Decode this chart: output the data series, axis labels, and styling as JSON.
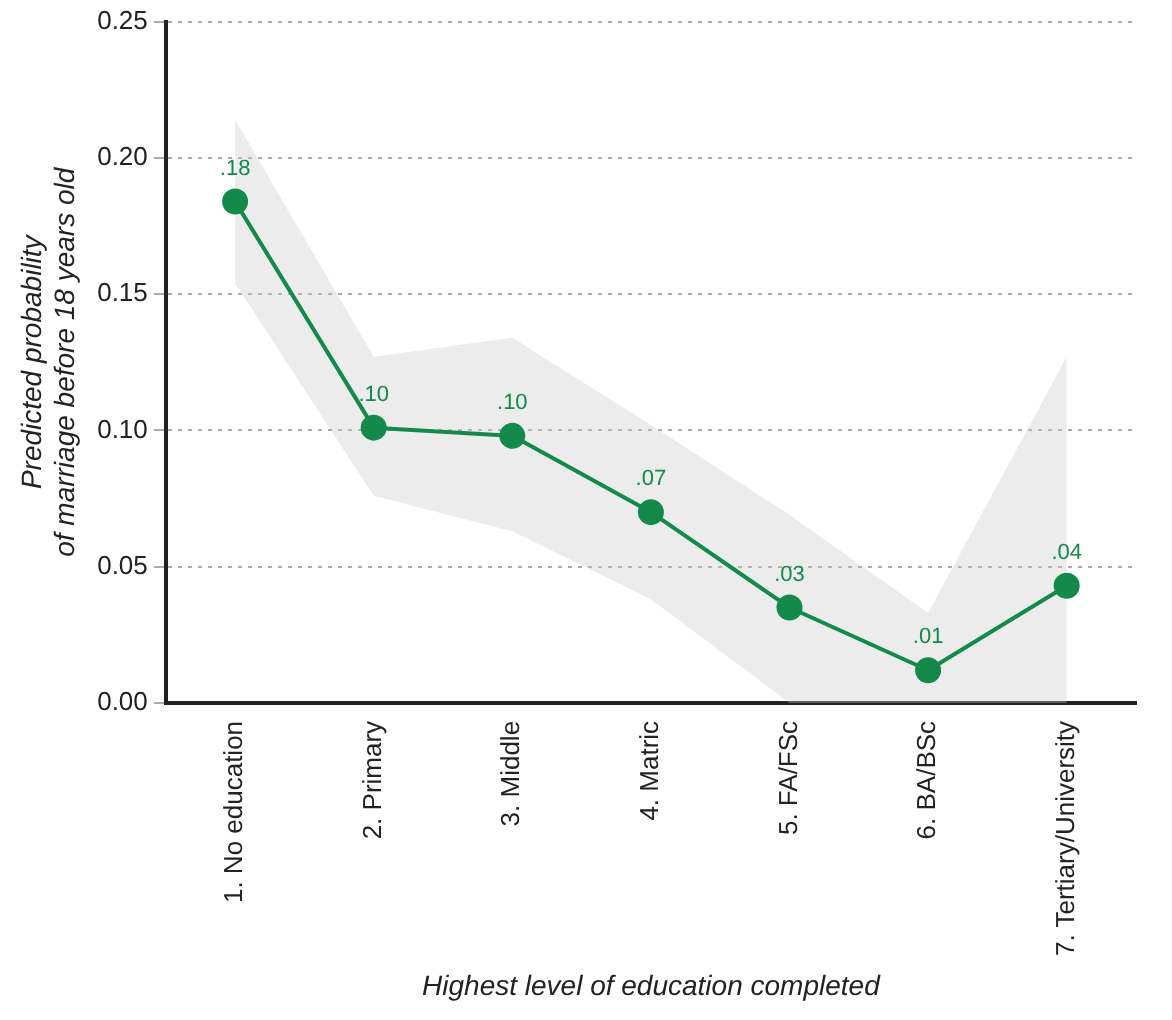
{
  "chart_data": {
    "type": "line",
    "xlabel": "Highest level of education completed",
    "ylabel": "Predicted probability\nof marriage before 18 years old",
    "categories": [
      "1. No education",
      "2. Primary",
      "3. Middle",
      "4. Matric",
      "5. FA/FSc",
      "6. BA/BSc",
      "7. Tertiary/University"
    ],
    "series": [
      {
        "color": "#138a4a",
        "values": [
          0.184,
          0.101,
          0.098,
          0.07,
          0.035,
          0.012,
          0.043
        ],
        "lower": [
          0.154,
          0.076,
          0.063,
          0.038,
          0,
          0,
          0
        ],
        "upper": [
          0.214,
          0.127,
          0.134,
          0.102,
          0.069,
          0.033,
          0.127
        ],
        "value_labels": [
          ".18",
          ".10",
          ".10",
          ".07",
          ".03",
          ".01",
          ".04"
        ]
      }
    ],
    "ylim": [
      0,
      0.25
    ],
    "yticks": [
      {
        "value": 0,
        "label": "0.00"
      },
      {
        "value": 0.05,
        "label": "0.05"
      },
      {
        "value": 0.1,
        "label": "0.10"
      },
      {
        "value": 0.15,
        "label": "0.15"
      },
      {
        "value": 0.2,
        "label": "0.20"
      },
      {
        "value": 0.25,
        "label": "0.25"
      }
    ],
    "grid": "y",
    "legend": false,
    "marker": "circle",
    "line_style": "solid"
  }
}
